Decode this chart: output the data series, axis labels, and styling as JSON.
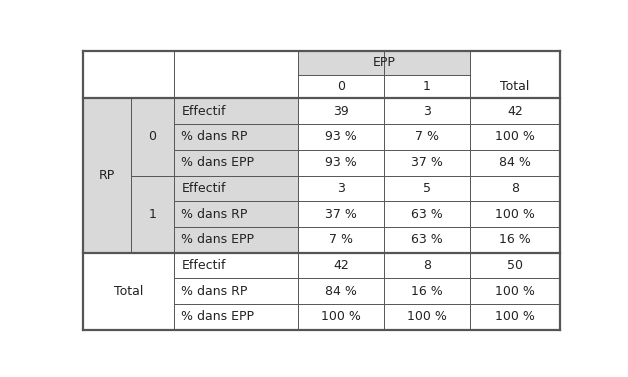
{
  "background_color": "#ffffff",
  "header_bg": "#d9d9d9",
  "row_header_bg": "#d9d9d9",
  "text_color": "#222222",
  "font_size": 9.0,
  "rows": [
    {
      "label": "Effectif",
      "v0": "39",
      "v1": "3",
      "vtotal": "42"
    },
    {
      "label": "% dans RP",
      "v0": "93 %",
      "v1": "7 %",
      "vtotal": "100 %"
    },
    {
      "label": "% dans EPP",
      "v0": "93 %",
      "v1": "37 %",
      "vtotal": "84 %"
    },
    {
      "label": "Effectif",
      "v0": "3",
      "v1": "5",
      "vtotal": "8"
    },
    {
      "label": "% dans RP",
      "v0": "37 %",
      "v1": "63 %",
      "vtotal": "100 %"
    },
    {
      "label": "% dans EPP",
      "v0": "7 %",
      "v1": "63 %",
      "vtotal": "16 %"
    },
    {
      "label": "Effectif",
      "v0": "42",
      "v1": "8",
      "vtotal": "50"
    },
    {
      "label": "% dans RP",
      "v0": "84 %",
      "v1": "16 %",
      "vtotal": "100 %"
    },
    {
      "label": "% dans EPP",
      "v0": "100 %",
      "v1": "100 %",
      "vtotal": "100 %"
    }
  ]
}
